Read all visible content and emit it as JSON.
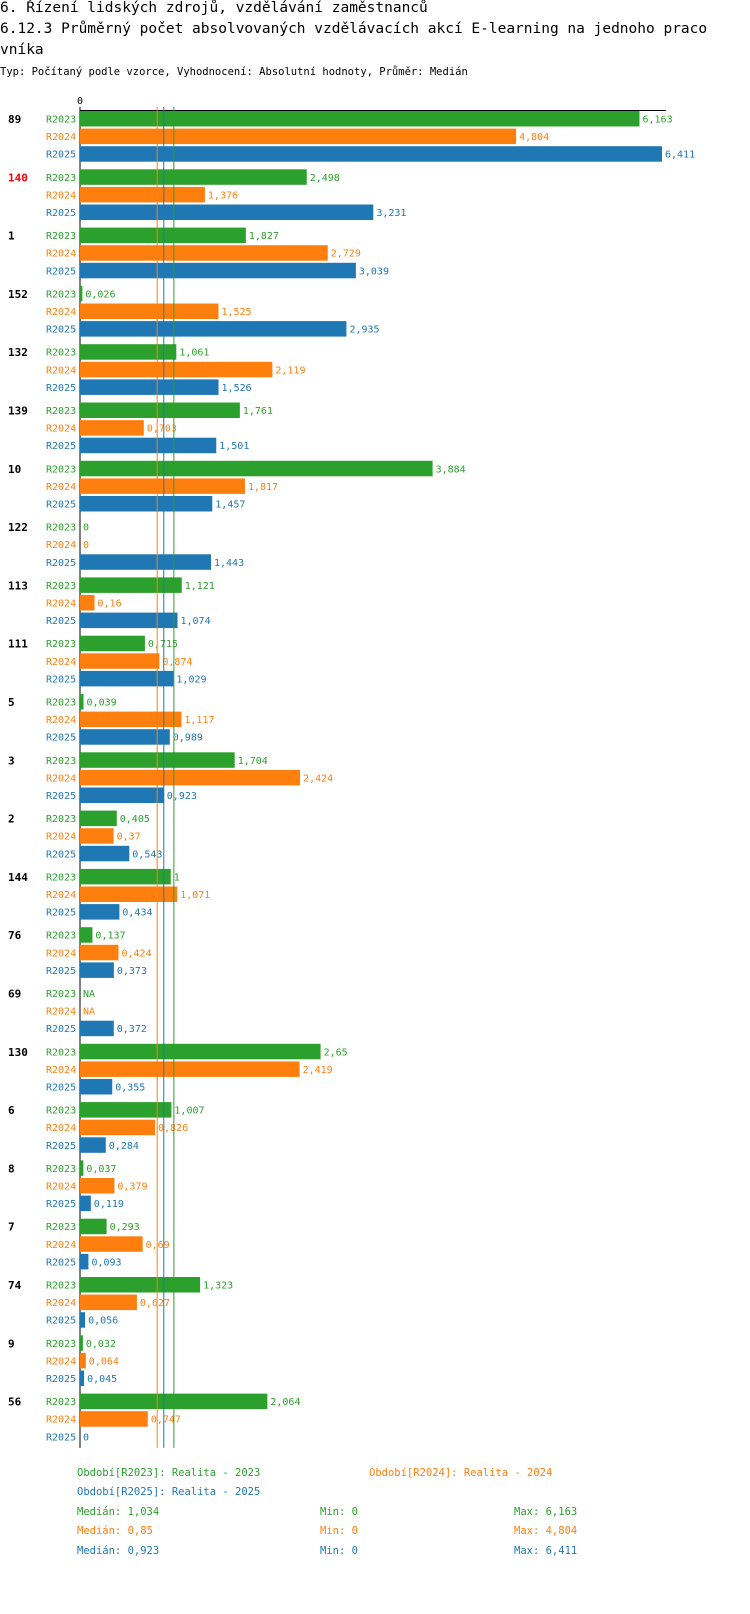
{
  "header": {
    "line1": "6. Řízení lidských zdrojů, vzdělávání zaměstnanců",
    "line2": "6.12.3 Průměrný počet absolvovaných vzdělávacích akcí E-learning na jednoho praco",
    "line3": "vníka",
    "subtitle": "Typ: Počítaný podle vzorce, Vyhodnocení: Absolutní hodnoty, Průměr: Medián"
  },
  "colors": {
    "R2023": "#2ca02c",
    "R2024": "#ff7f0e",
    "R2025": "#1f77b4",
    "highlight": "#ff0000"
  },
  "chart_data": {
    "type": "bar",
    "orientation": "horizontal",
    "axis_zero_label": "0",
    "xlim": [
      0,
      6.411
    ],
    "series_names": [
      "R2023",
      "R2024",
      "R2025"
    ],
    "highlight_category": "140",
    "categories": [
      {
        "label": "89",
        "values": [
          6.163,
          4.804,
          6.411
        ],
        "labels": [
          "6,163",
          "4,804",
          "6,411"
        ]
      },
      {
        "label": "140",
        "values": [
          2.498,
          1.376,
          3.231
        ],
        "labels": [
          "2,498",
          "1,376",
          "3,231"
        ]
      },
      {
        "label": "1",
        "values": [
          1.827,
          2.729,
          3.039
        ],
        "labels": [
          "1,827",
          "2,729",
          "3,039"
        ]
      },
      {
        "label": "152",
        "values": [
          0.026,
          1.525,
          2.935
        ],
        "labels": [
          "0,026",
          "1,525",
          "2,935"
        ]
      },
      {
        "label": "132",
        "values": [
          1.061,
          2.119,
          1.526
        ],
        "labels": [
          "1,061",
          "2,119",
          "1,526"
        ]
      },
      {
        "label": "139",
        "values": [
          1.761,
          0.703,
          1.501
        ],
        "labels": [
          "1,761",
          "0,703",
          "1,501"
        ]
      },
      {
        "label": "10",
        "values": [
          3.884,
          1.817,
          1.457
        ],
        "labels": [
          "3,884",
          "1,817",
          "1,457"
        ]
      },
      {
        "label": "122",
        "values": [
          0,
          0,
          1.443
        ],
        "labels": [
          "0",
          "0",
          "1,443"
        ]
      },
      {
        "label": "113",
        "values": [
          1.121,
          0.16,
          1.074
        ],
        "labels": [
          "1,121",
          "0,16",
          "1,074"
        ]
      },
      {
        "label": "111",
        "values": [
          0.715,
          0.874,
          1.029
        ],
        "labels": [
          "0,715",
          "0,874",
          "1,029"
        ]
      },
      {
        "label": "5",
        "values": [
          0.039,
          1.117,
          0.989
        ],
        "labels": [
          "0,039",
          "1,117",
          "0,989"
        ]
      },
      {
        "label": "3",
        "values": [
          1.704,
          2.424,
          0.923
        ],
        "labels": [
          "1,704",
          "2,424",
          "0,923"
        ]
      },
      {
        "label": "2",
        "values": [
          0.405,
          0.37,
          0.543
        ],
        "labels": [
          "0,405",
          "0,37",
          "0,543"
        ]
      },
      {
        "label": "144",
        "values": [
          1,
          1.071,
          0.434
        ],
        "labels": [
          "1",
          "1,071",
          "0,434"
        ]
      },
      {
        "label": "76",
        "values": [
          0.137,
          0.424,
          0.373
        ],
        "labels": [
          "0,137",
          "0,424",
          "0,373"
        ]
      },
      {
        "label": "69",
        "values": [
          null,
          null,
          0.372
        ],
        "labels": [
          "NA",
          "NA",
          "0,372"
        ]
      },
      {
        "label": "130",
        "values": [
          2.65,
          2.419,
          0.355
        ],
        "labels": [
          "2,65",
          "2,419",
          "0,355"
        ]
      },
      {
        "label": "6",
        "values": [
          1.007,
          0.826,
          0.284
        ],
        "labels": [
          "1,007",
          "0,826",
          "0,284"
        ]
      },
      {
        "label": "8",
        "values": [
          0.037,
          0.379,
          0.119
        ],
        "labels": [
          "0,037",
          "0,379",
          "0,119"
        ]
      },
      {
        "label": "7",
        "values": [
          0.293,
          0.69,
          0.093
        ],
        "labels": [
          "0,293",
          "0,69",
          "0,093"
        ]
      },
      {
        "label": "74",
        "values": [
          1.323,
          0.627,
          0.056
        ],
        "labels": [
          "1,323",
          "0,627",
          "0,056"
        ]
      },
      {
        "label": "9",
        "values": [
          0.032,
          0.064,
          0.045
        ],
        "labels": [
          "0,032",
          "0,064",
          "0,045"
        ]
      },
      {
        "label": "56",
        "values": [
          2.064,
          0.747,
          0
        ],
        "labels": [
          "2,064",
          "0,747",
          "0"
        ]
      }
    ],
    "median_lines": [
      {
        "series": "R2023",
        "value": 1.034
      },
      {
        "series": "R2024",
        "value": 0.85
      },
      {
        "series": "R2025",
        "value": 0.923
      }
    ]
  },
  "legend": {
    "r2023": "Období[R2023]: Realita - 2023",
    "r2024": "Období[R2024]: Realita - 2024",
    "r2025": "Období[R2025]: Realita - 2025"
  },
  "stats": [
    {
      "median": "Medián: 1,034",
      "min": "Min: 0",
      "max": "Max: 6,163"
    },
    {
      "median": "Medián: 0,85",
      "min": "Min: 0",
      "max": "Max: 4,804"
    },
    {
      "median": "Medián: 0,923",
      "min": "Min: 0",
      "max": "Max: 6,411"
    }
  ]
}
